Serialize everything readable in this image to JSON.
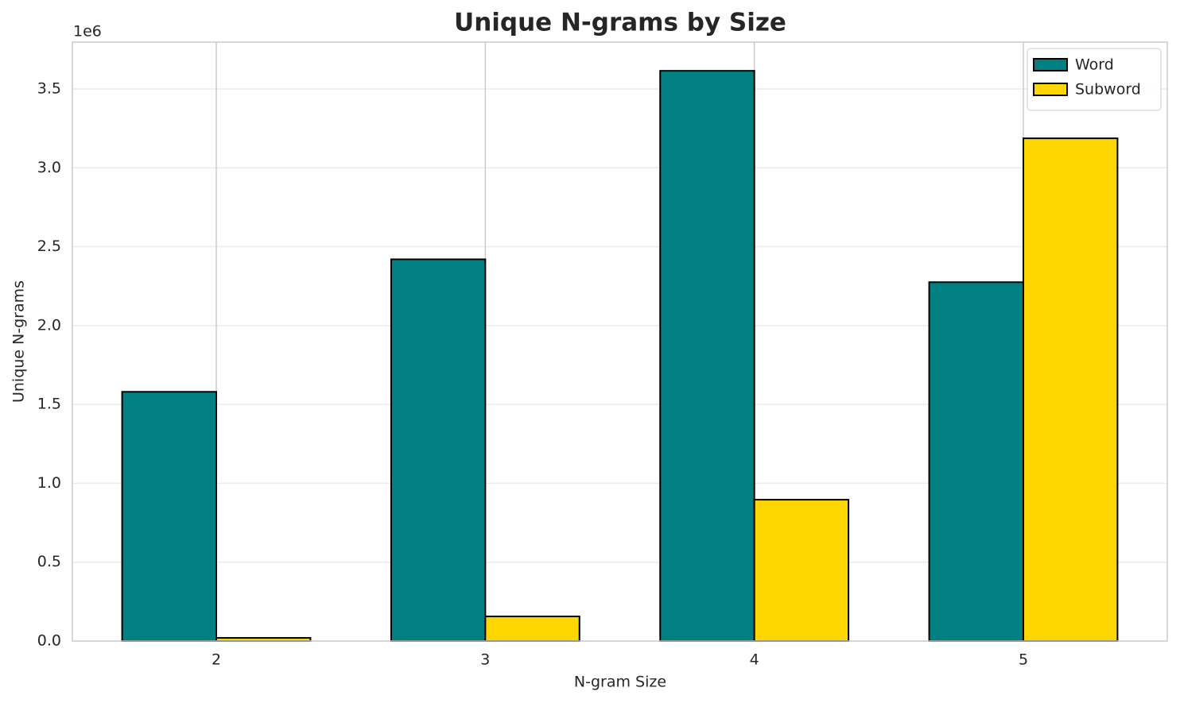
{
  "chart_data": {
    "type": "bar",
    "title": "Unique N-grams by Size",
    "x_label": "N-gram Size",
    "y_label": "Unique N-grams",
    "y_offset_label": "1e6",
    "categories": [
      "2",
      "3",
      "4",
      "5"
    ],
    "series": [
      {
        "name": "Word",
        "color": "#008080",
        "values": [
          1580000,
          2420000,
          3615000,
          2275000
        ]
      },
      {
        "name": "Subword",
        "color": "#ffd700",
        "values": [
          20000,
          156000,
          896000,
          3187000
        ]
      }
    ],
    "ylim": [
      0,
      3797000
    ],
    "yticks": [
      {
        "value": 0,
        "label": "0.0"
      },
      {
        "value": 500000,
        "label": "0.5"
      },
      {
        "value": 1000000,
        "label": "1.0"
      },
      {
        "value": 1500000,
        "label": "1.5"
      },
      {
        "value": 2000000,
        "label": "2.0"
      },
      {
        "value": 2500000,
        "label": "2.5"
      },
      {
        "value": 3000000,
        "label": "3.0"
      },
      {
        "value": 3500000,
        "label": "3.5"
      }
    ],
    "grid": true,
    "legend": "upper right"
  }
}
